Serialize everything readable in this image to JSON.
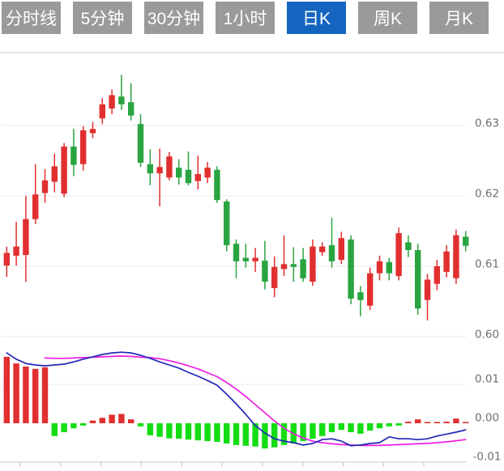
{
  "tabs": {
    "items": [
      {
        "key": "fenshi",
        "label": "分时线",
        "active": false
      },
      {
        "key": "5min",
        "label": "5分钟",
        "active": false
      },
      {
        "key": "30min",
        "label": "30分钟",
        "active": false
      },
      {
        "key": "1hour",
        "label": "1小时",
        "active": false
      },
      {
        "key": "daily-k",
        "label": "日K",
        "active": true
      },
      {
        "key": "weekly-k",
        "label": "周K",
        "active": false
      },
      {
        "key": "monthly-k",
        "label": "月K",
        "active": false
      }
    ]
  },
  "colors": {
    "tab_bg": "#9a9a9a",
    "tab_active_bg": "#1565c0",
    "tab_text": "#ffffff",
    "candle_up": "#e12f30",
    "candle_down": "#2aa441",
    "hist_up": "#e12f30",
    "hist_down": "#14dd14",
    "dif_line": "#2127b8",
    "dea_line": "#ee1ee4",
    "grid": "#e8e8e8",
    "axis_line": "#d9d9d9",
    "axis_text": "#6e6e6e"
  },
  "chart_data": {
    "type": "candlestick+macd",
    "title": "",
    "price_pane": {
      "ylim": [
        0.598,
        0.6403
      ],
      "grid_on": true,
      "y_ticks": [
        {
          "value": 0.63,
          "label": "0.63"
        },
        {
          "value": 0.62,
          "label": "0.62"
        },
        {
          "value": 0.61,
          "label": "0.61"
        },
        {
          "value": 0.6,
          "label": "0.60"
        }
      ],
      "candles_ohlc": [
        [
          0.6101,
          0.6128,
          0.6085,
          0.6119
        ],
        [
          0.6115,
          0.6163,
          0.6101,
          0.6128
        ],
        [
          0.6116,
          0.62,
          0.6078,
          0.6167
        ],
        [
          0.6167,
          0.6245,
          0.616,
          0.6202
        ],
        [
          0.6204,
          0.6238,
          0.619,
          0.6222
        ],
        [
          0.622,
          0.626,
          0.6205,
          0.6242
        ],
        [
          0.6203,
          0.6275,
          0.6198,
          0.627
        ],
        [
          0.627,
          0.6295,
          0.6228,
          0.6244
        ],
        [
          0.6245,
          0.6299,
          0.6236,
          0.6293
        ],
        [
          0.6289,
          0.6305,
          0.6282,
          0.6295
        ],
        [
          0.631,
          0.6339,
          0.6302,
          0.633
        ],
        [
          0.6324,
          0.6351,
          0.6316,
          0.6343
        ],
        [
          0.6341,
          0.6372,
          0.6322,
          0.633
        ],
        [
          0.6333,
          0.636,
          0.6307,
          0.6314
        ],
        [
          0.6302,
          0.6316,
          0.6241,
          0.6247
        ],
        [
          0.6245,
          0.6266,
          0.6215,
          0.6232
        ],
        [
          0.6232,
          0.6267,
          0.6185,
          0.6241
        ],
        [
          0.6226,
          0.6262,
          0.6222,
          0.6256
        ],
        [
          0.624,
          0.6252,
          0.6216,
          0.6226
        ],
        [
          0.6237,
          0.6263,
          0.6215,
          0.6218
        ],
        [
          0.6221,
          0.6257,
          0.6209,
          0.6231
        ],
        [
          0.6226,
          0.6248,
          0.6218,
          0.624
        ],
        [
          0.6237,
          0.6242,
          0.619,
          0.6194
        ],
        [
          0.6192,
          0.6195,
          0.6121,
          0.613
        ],
        [
          0.6132,
          0.6138,
          0.6083,
          0.6107
        ],
        [
          0.6112,
          0.6132,
          0.6098,
          0.6107
        ],
        [
          0.6107,
          0.6126,
          0.6092,
          0.6112
        ],
        [
          0.6108,
          0.6136,
          0.6067,
          0.6078
        ],
        [
          0.6069,
          0.6114,
          0.6056,
          0.6099
        ],
        [
          0.6096,
          0.6144,
          0.6086,
          0.6103
        ],
        [
          0.6103,
          0.6127,
          0.6078,
          0.6099
        ],
        [
          0.611,
          0.6126,
          0.6078,
          0.6083
        ],
        [
          0.6078,
          0.6138,
          0.6072,
          0.6128
        ],
        [
          0.612,
          0.6134,
          0.6115,
          0.6128
        ],
        [
          0.613,
          0.6169,
          0.6098,
          0.6107
        ],
        [
          0.6109,
          0.6149,
          0.6103,
          0.614
        ],
        [
          0.6138,
          0.6144,
          0.6046,
          0.6054
        ],
        [
          0.6063,
          0.6072,
          0.6029,
          0.6052
        ],
        [
          0.6044,
          0.6098,
          0.6038,
          0.609
        ],
        [
          0.609,
          0.6115,
          0.608,
          0.6107
        ],
        [
          0.6106,
          0.6112,
          0.608,
          0.609
        ],
        [
          0.6086,
          0.6155,
          0.608,
          0.6147
        ],
        [
          0.6134,
          0.6144,
          0.6113,
          0.6123
        ],
        [
          0.6123,
          0.6132,
          0.6031,
          0.604
        ],
        [
          0.6052,
          0.6089,
          0.6023,
          0.6081
        ],
        [
          0.6075,
          0.6109,
          0.6066,
          0.61
        ],
        [
          0.6092,
          0.613,
          0.6084,
          0.6121
        ],
        [
          0.6083,
          0.6152,
          0.6075,
          0.6144
        ],
        [
          0.6142,
          0.615,
          0.6121,
          0.6129
        ]
      ]
    },
    "macd_pane": {
      "ylim": [
        -0.011,
        0.019
      ],
      "y_ticks": [
        {
          "value": 0.01,
          "label": "0.01"
        },
        {
          "value": 0.0,
          "label": "0.00"
        },
        {
          "value": -0.01,
          "label": "-0.01"
        }
      ],
      "histogram": [
        0.0171,
        0.0154,
        0.0146,
        0.014,
        0.0144,
        -0.0033,
        -0.0023,
        -0.0013,
        -0.0006,
        0.0007,
        0.0014,
        0.0022,
        0.0024,
        0.001,
        -0.0008,
        -0.0031,
        -0.0035,
        -0.0039,
        -0.004,
        -0.0042,
        -0.0044,
        -0.0046,
        -0.0048,
        -0.0052,
        -0.0056,
        -0.0058,
        -0.006,
        -0.0065,
        -0.0062,
        -0.0056,
        -0.0052,
        -0.0046,
        -0.004,
        -0.0033,
        -0.0023,
        -0.0017,
        -0.0023,
        -0.0027,
        -0.0019,
        -0.0013,
        -0.0008,
        -0.0006,
        0.0004,
        0.001,
        0.0001,
        0.0003,
        0.0004,
        0.0012,
        0.0002
      ],
      "dif": [
        0.0181,
        0.0165,
        0.0154,
        0.015,
        0.0148,
        0.015,
        0.0152,
        0.0158,
        0.0165,
        0.0171,
        0.0177,
        0.0181,
        0.0183,
        0.0181,
        0.0175,
        0.0167,
        0.0158,
        0.015,
        0.0142,
        0.0131,
        0.0121,
        0.011,
        0.0098,
        0.0075,
        0.005,
        0.0023,
        -0.0006,
        -0.0025,
        -0.004,
        -0.0046,
        -0.005,
        -0.0056,
        -0.0052,
        -0.0042,
        -0.004,
        -0.0046,
        -0.0058,
        -0.0056,
        -0.0052,
        -0.005,
        -0.0035,
        -0.004,
        -0.004,
        -0.0042,
        -0.004,
        -0.0033,
        -0.0028,
        -0.0023,
        -0.0017
      ],
      "dea": [
        null,
        null,
        null,
        null,
        0.0168,
        0.0167,
        0.0167,
        0.0168,
        0.0169,
        0.017,
        0.0171,
        0.0172,
        0.0173,
        0.0172,
        0.017,
        0.0169,
        0.0166,
        0.0161,
        0.0155,
        0.0148,
        0.014,
        0.013,
        0.012,
        0.0105,
        0.0088,
        0.0069,
        0.0048,
        0.0027,
        0.0006,
        -0.0013,
        -0.0027,
        -0.0038,
        -0.0046,
        -0.005,
        -0.0053,
        -0.0055,
        -0.0056,
        -0.0057,
        -0.0057,
        -0.0057,
        -0.0056,
        -0.0055,
        -0.0054,
        -0.0053,
        -0.0052,
        -0.005,
        -0.0048,
        -0.0045,
        -0.0042
      ]
    }
  }
}
